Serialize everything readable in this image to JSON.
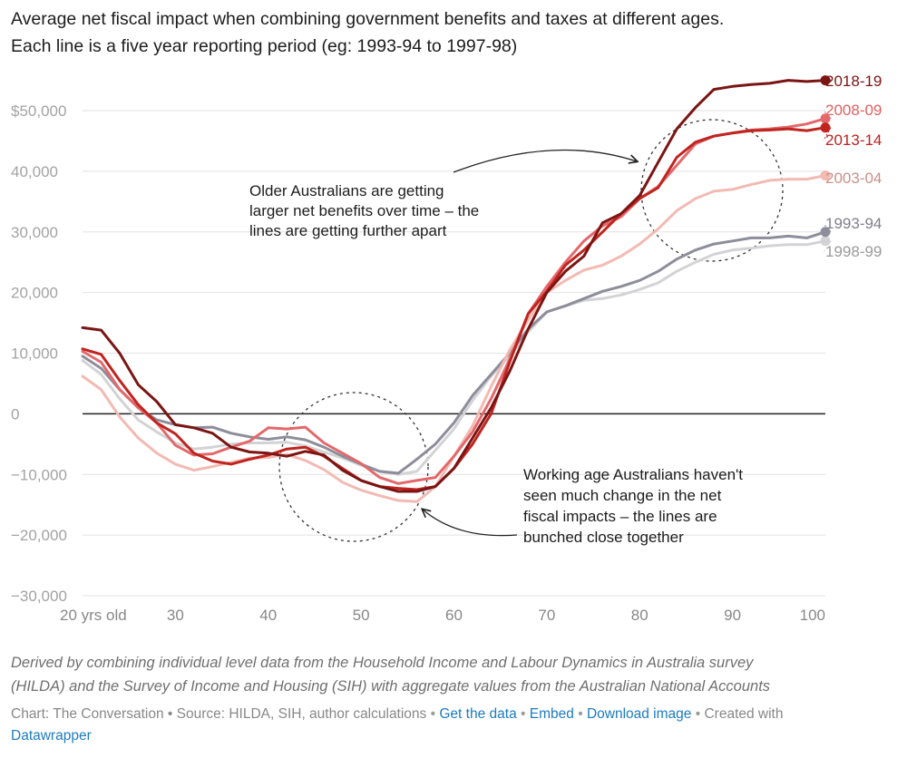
{
  "title": {
    "line1": "Average net fiscal impact when combining government benefits and taxes at different ages.",
    "line2": "Each line is a five year reporting period (eg: 1993-94 to 1997-98)"
  },
  "chart_data": {
    "type": "line",
    "title": "Average net fiscal impact when combining government benefits and taxes at different ages.",
    "subtitle": "Each line is a five year reporting period (eg: 1993-94 to 1997-98)",
    "xlabel": "",
    "ylabel": "",
    "xlim": [
      20,
      100
    ],
    "ylim": [
      -30000,
      55000
    ],
    "x_ticks": [
      {
        "value": 20,
        "label": "20 yrs old"
      },
      {
        "value": 30,
        "label": "30"
      },
      {
        "value": 40,
        "label": "40"
      },
      {
        "value": 50,
        "label": "50"
      },
      {
        "value": 60,
        "label": "60"
      },
      {
        "value": 70,
        "label": "70"
      },
      {
        "value": 80,
        "label": "80"
      },
      {
        "value": 90,
        "label": "90"
      },
      {
        "value": 100,
        "label": "100"
      }
    ],
    "y_ticks": [
      {
        "value": 50000,
        "label": "$50,000"
      },
      {
        "value": 40000,
        "label": "40,000"
      },
      {
        "value": 30000,
        "label": "30,000"
      },
      {
        "value": 20000,
        "label": "20,000"
      },
      {
        "value": 10000,
        "label": "10,000"
      },
      {
        "value": 0,
        "label": "0"
      },
      {
        "value": -10000,
        "label": "−10,000"
      },
      {
        "value": -20000,
        "label": "−20,000"
      },
      {
        "value": -30000,
        "label": "−30,000"
      }
    ],
    "x": [
      20,
      22,
      24,
      26,
      28,
      30,
      32,
      34,
      36,
      38,
      40,
      42,
      44,
      46,
      48,
      50,
      52,
      54,
      56,
      58,
      60,
      62,
      64,
      66,
      68,
      70,
      72,
      74,
      76,
      78,
      80,
      82,
      84,
      86,
      88,
      90,
      92,
      94,
      96,
      98,
      100
    ],
    "series": [
      {
        "name": "1993-94",
        "color": "#8d8d9b",
        "values": [
          9500,
          7500,
          4000,
          1000,
          -1000,
          -1800,
          -2300,
          -2200,
          -3200,
          -3800,
          -4200,
          -3800,
          -4300,
          -5500,
          -7000,
          -8300,
          -9500,
          -9800,
          -7500,
          -5000,
          -1500,
          3000,
          6500,
          10000,
          14000,
          16800,
          17800,
          19000,
          20200,
          21000,
          22000,
          23500,
          25500,
          27000,
          28000,
          28500,
          29000,
          29000,
          29300,
          29000,
          30000
        ]
      },
      {
        "name": "1998-99",
        "color": "#d3d3d6",
        "values": [
          8800,
          6500,
          2500,
          -1000,
          -3000,
          -4800,
          -5800,
          -5500,
          -5000,
          -4800,
          -4800,
          -4700,
          -5300,
          -6300,
          -7300,
          -8500,
          -9500,
          -10000,
          -9500,
          -6000,
          -2500,
          2200,
          6200,
          9500,
          13500,
          16800,
          17800,
          18700,
          19000,
          19600,
          20500,
          21600,
          23500,
          25000,
          26300,
          27000,
          27300,
          27700,
          27900,
          27900,
          28500
        ]
      },
      {
        "name": "2003-04",
        "color": "#f2bab3",
        "values": [
          6200,
          4000,
          -500,
          -4000,
          -6500,
          -8300,
          -9300,
          -8700,
          -8000,
          -7300,
          -7200,
          -6700,
          -7700,
          -9200,
          -11300,
          -12600,
          -13500,
          -14300,
          -14500,
          -12000,
          -7000,
          -2000,
          4500,
          10500,
          15500,
          20000,
          22000,
          23700,
          24500,
          26000,
          28000,
          30500,
          33500,
          35500,
          36700,
          37000,
          37800,
          38500,
          38700,
          38700,
          39300
        ]
      },
      {
        "name": "2008-09",
        "color": "#e3686b",
        "values": [
          10300,
          8500,
          4000,
          1000,
          -1500,
          -5200,
          -6800,
          -6600,
          -5500,
          -4500,
          -2300,
          -2500,
          -2200,
          -4800,
          -6500,
          -8200,
          -10500,
          -11500,
          -11000,
          -10500,
          -7000,
          -3000,
          2500,
          9000,
          16500,
          21000,
          25000,
          28500,
          31000,
          32500,
          35500,
          37500,
          41000,
          44500,
          45800,
          46300,
          46800,
          47000,
          47300,
          47800,
          48700
        ]
      },
      {
        "name": "2013-14",
        "color": "#c0241f",
        "values": [
          10700,
          9800,
          5500,
          1500,
          -1500,
          -3300,
          -6500,
          -7800,
          -8300,
          -7500,
          -6800,
          -5800,
          -5500,
          -7000,
          -9000,
          -11000,
          -12000,
          -12300,
          -12500,
          -12000,
          -9000,
          -5000,
          0,
          8500,
          16500,
          20200,
          24500,
          27000,
          30000,
          33000,
          35500,
          37300,
          42300,
          44800,
          45800,
          46300,
          46700,
          46800,
          47000,
          46700,
          47200
        ]
      },
      {
        "name": "2018-19",
        "color": "#7b1513",
        "values": [
          14200,
          13800,
          10000,
          4800,
          2000,
          -1800,
          -2300,
          -3200,
          -5500,
          -6300,
          -6500,
          -7000,
          -6200,
          -6800,
          -9300,
          -11000,
          -12000,
          -12800,
          -12800,
          -12000,
          -9000,
          -4000,
          1000,
          7000,
          14000,
          20000,
          23500,
          26000,
          31500,
          33000,
          36000,
          41500,
          47000,
          50500,
          53500,
          54000,
          54300,
          54500,
          55000,
          54800,
          55000
        ]
      }
    ],
    "legend": [
      "2018-19",
      "2008-09",
      "2013-14",
      "2003-04",
      "1993-94",
      "1998-99"
    ],
    "legend_placement": "right end of each line",
    "annotations": [
      {
        "lines": [
          "Older Australians are getting",
          "larger net benefits over time – the",
          "lines are getting further apart"
        ]
      },
      {
        "lines": [
          "Working age Australians haven't",
          "seen much change in the net",
          "fiscal impacts – the lines are",
          "bunched close together"
        ]
      }
    ]
  },
  "notes": {
    "line1": "Derived by combining individual level data from the Household Income and Labour Dynamics in Australia survey",
    "line2": "(HILDA) and the Survey of Income and Housing (SIH) with aggregate values from the Australian National Accounts"
  },
  "credits": {
    "source": "Chart: The Conversation • Source: HILDA, SIH, author calculations",
    "sep": "•",
    "get_data": "Get the data",
    "embed": "Embed",
    "download": "Download image",
    "created_with": "Created with",
    "datawrapper": "Datawrapper"
  }
}
